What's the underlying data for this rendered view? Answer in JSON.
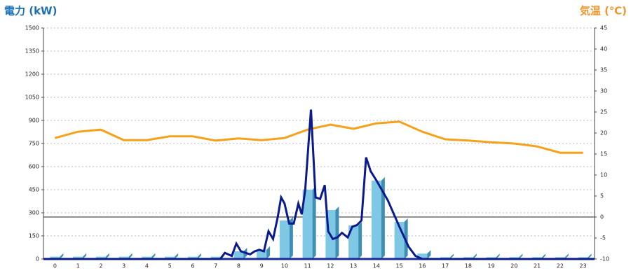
{
  "chart_data": {
    "type": "bar",
    "title_left": "電力 (kW)",
    "title_right": "気温 (℃)",
    "categories": [
      "0",
      "1",
      "2",
      "3",
      "4",
      "5",
      "6",
      "7",
      "8",
      "9",
      "10",
      "11",
      "12",
      "13",
      "14",
      "15",
      "16",
      "17",
      "18",
      "19",
      "20",
      "21",
      "22",
      "23"
    ],
    "values": [
      15,
      15,
      15,
      15,
      15,
      15,
      15,
      15,
      50,
      60,
      250,
      450,
      318,
      218,
      509,
      241,
      35,
      12,
      12,
      12,
      12,
      12,
      12,
      12
    ],
    "bar_color": "#7ec8e6",
    "temperature": {
      "color": "#f5a11a",
      "axis": "y2",
      "values": [
        18.8,
        20.3,
        20.8,
        18.3,
        18.3,
        19.2,
        19.2,
        18.2,
        18.7,
        18.3,
        18.8,
        20.8,
        22,
        21,
        22.3,
        22.7,
        20.3,
        18.5,
        18.2,
        17.8,
        17.5,
        16.8,
        15.3,
        15.3
      ]
    },
    "power_line": {
      "color": "#0a1a8c",
      "x": [
        -0.5,
        7.2,
        7.4,
        7.7,
        7.9,
        8.1,
        8.3,
        8.5,
        8.7,
        8.9,
        9.1,
        9.3,
        9.5,
        9.7,
        9.85,
        10.0,
        10.2,
        10.4,
        10.6,
        10.75,
        10.9,
        11.15,
        11.35,
        11.55,
        11.75,
        11.9,
        12.1,
        12.3,
        12.5,
        12.75,
        12.95,
        13.15,
        13.35,
        13.55,
        13.75,
        14.0,
        14.5,
        15.0,
        15.4,
        15.7,
        16.0,
        23.5
      ],
      "values": [
        0,
        0,
        40,
        20,
        100,
        50,
        40,
        30,
        50,
        60,
        50,
        180,
        130,
        270,
        400,
        360,
        230,
        230,
        360,
        290,
        450,
        970,
        400,
        390,
        480,
        180,
        130,
        140,
        170,
        140,
        210,
        220,
        250,
        660,
        570,
        510,
        380,
        210,
        80,
        20,
        0,
        0
      ]
    },
    "xlim": [
      -0.5,
      23.5
    ],
    "ylim": [
      0,
      1500
    ],
    "yticks": [
      0,
      150,
      300,
      450,
      600,
      750,
      900,
      1050,
      1200,
      1350,
      1500
    ],
    "y2lim": [
      -10,
      45
    ],
    "y2ticks": [
      -10,
      -5,
      0,
      5,
      10,
      15,
      20,
      25,
      30,
      35,
      40,
      45
    ],
    "grid": true
  }
}
